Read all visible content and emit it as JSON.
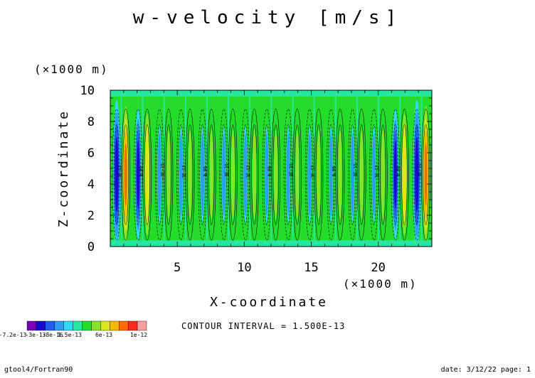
{
  "chart_data": {
    "type": "heatmap",
    "title": "w-velocity [m/s]",
    "xlabel": "X-coordinate",
    "ylabel": "Z-coordinate",
    "x_unit": "(×1000 m)",
    "y_unit": "(×1000 m)",
    "xlim": [
      0,
      24
    ],
    "ylim": [
      0,
      10
    ],
    "x_ticks": [
      5,
      10,
      15,
      20
    ],
    "y_ticks": [
      0,
      2,
      4,
      6,
      8,
      10
    ],
    "contour_interval_label": "CONTOUR INTERVAL = 1.500E-13",
    "colorbar_labels": [
      "-7.2e-13",
      "-3e-13",
      "-8e-16",
      "1.5e-13",
      "6e-13",
      "1e-12"
    ],
    "colorbar_colors": [
      "#7a00b8",
      "#1a0acd",
      "#1f5cf0",
      "#2e9cf2",
      "#30d8f0",
      "#27e6a0",
      "#24dc2a",
      "#88e42a",
      "#d8e81c",
      "#f4b800",
      "#ff6a00",
      "#ff2a1c",
      "#f8a09c"
    ],
    "contour_labels": [
      "3E-13",
      "0.00",
      "-3E-13"
    ]
  },
  "footer": {
    "left": "gtool4/Fortran90",
    "right": "date: 3/12/22 page: 1"
  }
}
